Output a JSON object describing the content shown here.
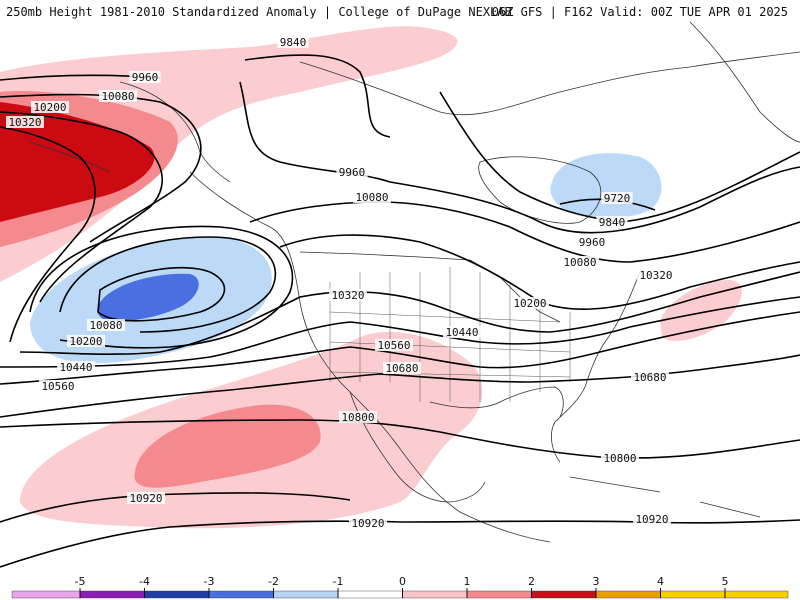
{
  "header": {
    "left_title": "250mb Height 1981-2010 Standardized Anomaly | College of DuPage NEXLAB",
    "right_title": "06Z GFS | F162 Valid: 00Z TUE APR 01 2025"
  },
  "contour_labels": [
    "9840",
    "9960",
    "10080",
    "10200",
    "10320",
    "9960",
    "10080",
    "9720",
    "9840",
    "9960",
    "10080",
    "10320",
    "10200",
    "10080",
    "10200",
    "10320",
    "10440",
    "10560",
    "10440",
    "10560",
    "10680",
    "10680",
    "10800",
    "10800",
    "10920",
    "10920",
    "10920"
  ],
  "colorbar": {
    "ticks": [
      "-5",
      "-4",
      "-3",
      "-2",
      "-1",
      "0",
      "1",
      "2",
      "3",
      "4",
      "5"
    ],
    "colors": [
      "#e9a3e8",
      "#8a1fb8",
      "#1f3fa6",
      "#4a6fe0",
      "#b6d3f4",
      "#ffffff",
      "#f8c4c8",
      "#f28a8e",
      "#c8101a",
      "#e8a000",
      "#f5d000"
    ]
  },
  "anomaly_colors": {
    "strong_negative": "#4a6fe0",
    "weak_negative": "#bcdaf7",
    "weak_positive": "#fbcdd0",
    "moderate_positive": "#f58a8e",
    "strong_positive": "#cc0a12"
  }
}
